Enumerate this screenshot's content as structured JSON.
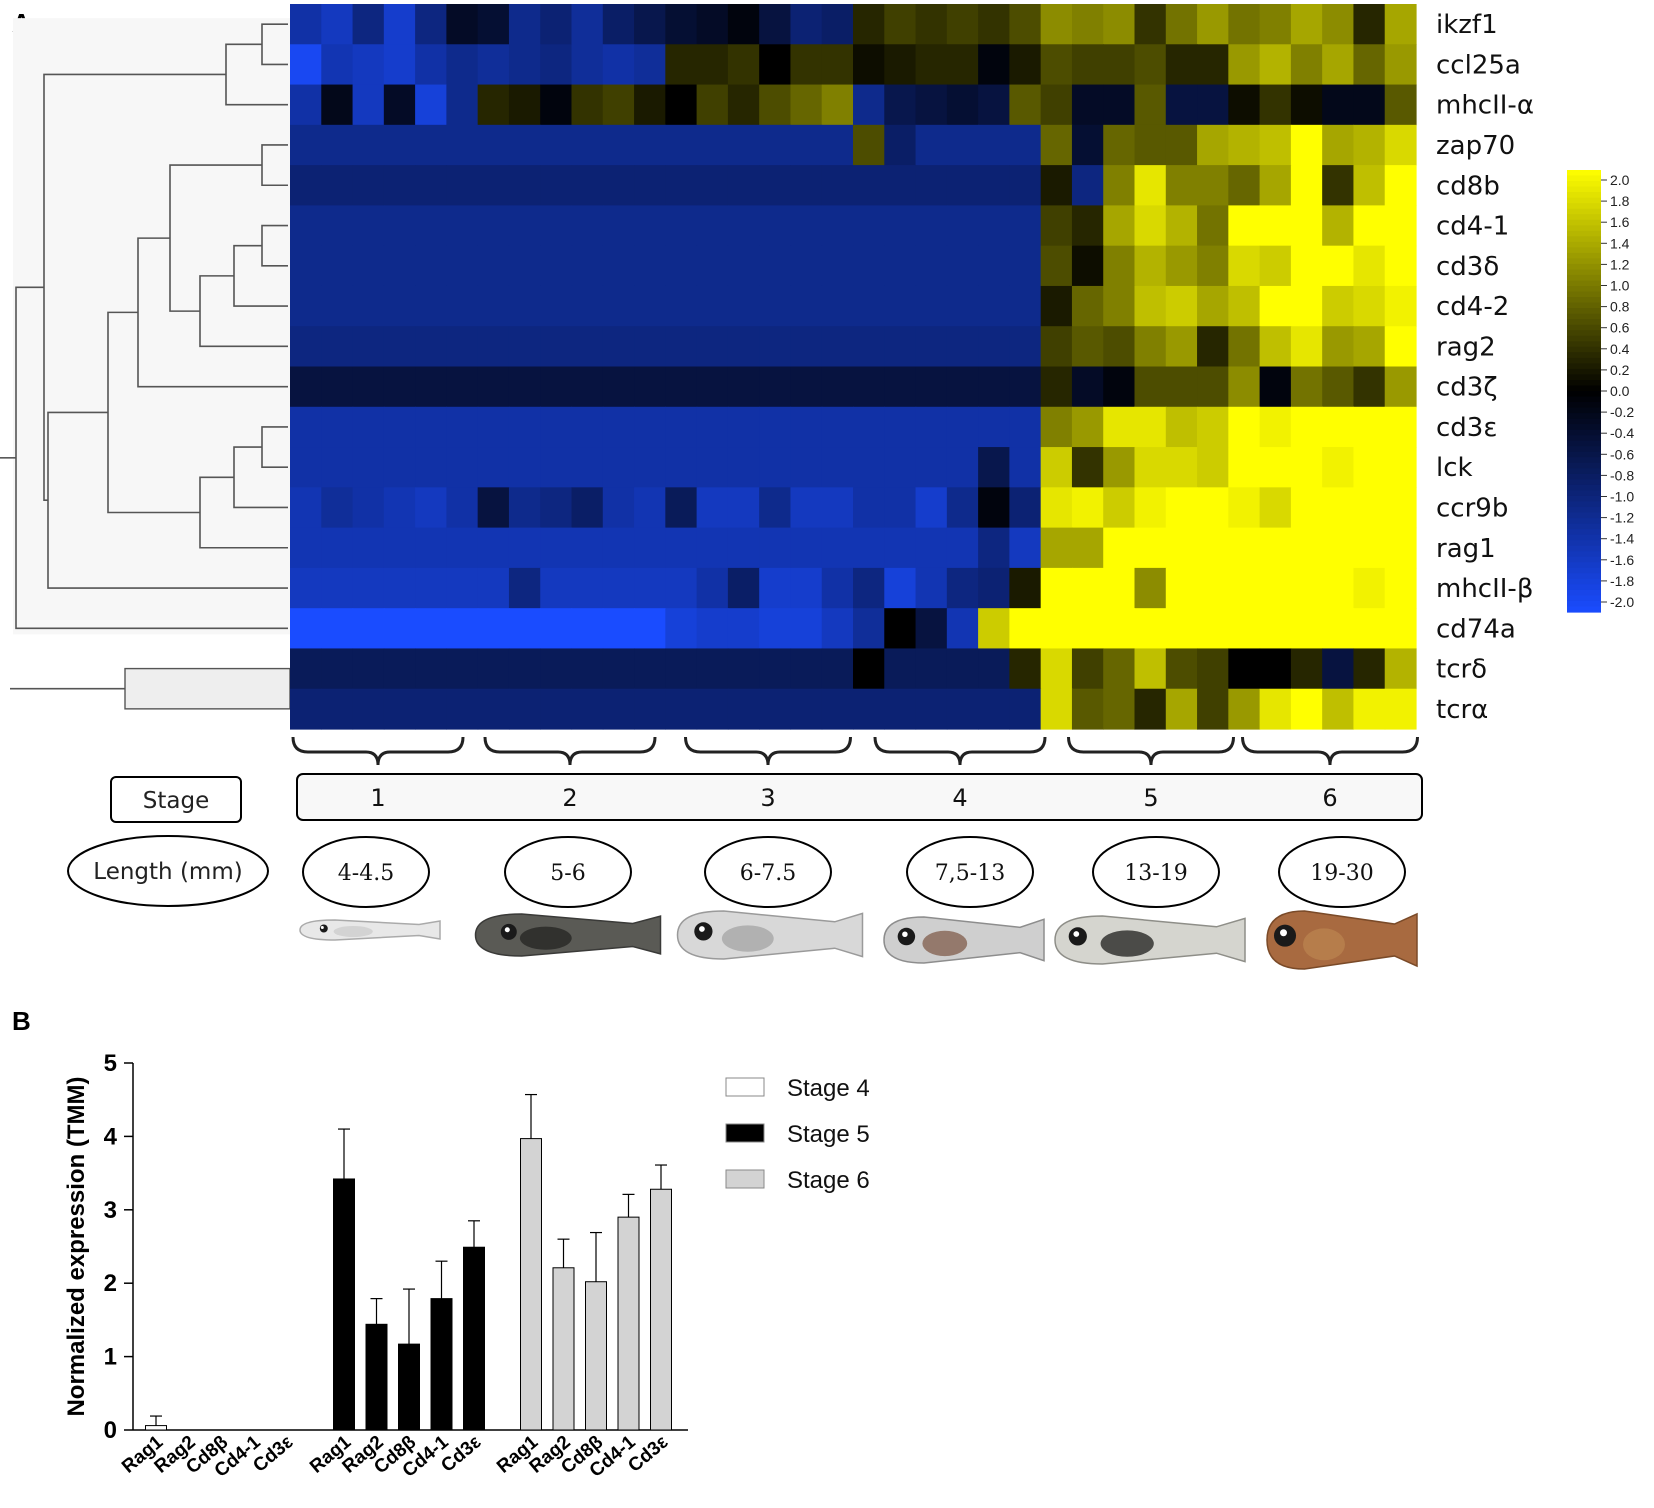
{
  "panelA": {
    "letter": "A",
    "stage_label": "Stage",
    "length_label": "Length (mm)",
    "genes": [
      "ikzf1",
      "ccl25a",
      "mhcII-α",
      "zap70",
      "cd8b",
      "cd4-1",
      "cd3δ",
      "cd4-2",
      "rag2",
      "cd3ζ",
      "cd3ε",
      "lck",
      "ccr9b",
      "rag1",
      "mhcII-β",
      "cd74a",
      "tcrδ",
      "tcrα"
    ],
    "stages": [
      "1",
      "2",
      "3",
      "4",
      "5",
      "6"
    ],
    "lengths": [
      "4-4.5",
      "5-6",
      "6-7.5",
      "7,5-13",
      "13-19",
      "19-30"
    ],
    "colorbar": {
      "ticks": [
        "2.0",
        "1.8",
        "1.6",
        "1.4",
        "1.2",
        "1.0",
        "0.8",
        "0.6",
        "0.4",
        "0.2",
        "0.0",
        "-0.2",
        "-0.4",
        "-0.6",
        "-0.8",
        "-1.0",
        "-1.2",
        "-1.4",
        "-1.6",
        "-1.8",
        "-2.0"
      ],
      "low_color": "#1a4cff",
      "mid_color": "#000000",
      "high_color": "#ffff00"
    }
  },
  "panelB": {
    "letter": "B"
  },
  "chart_data": [
    {
      "type": "heatmap",
      "rows": [
        "ikzf1",
        "ccl25a",
        "mhcII-α",
        "zap70",
        "cd8b",
        "cd4-1",
        "cd3δ",
        "cd4-2",
        "rag2",
        "cd3ζ",
        "cd3ε",
        "lck",
        "ccr9b",
        "rag1",
        "mhcII-β",
        "cd74a",
        "tcrδ",
        "tcrα"
      ],
      "column_groups": [
        "1",
        "2",
        "3",
        "4",
        "5",
        "6"
      ],
      "columns_per_group": 6,
      "value_range": [
        -2.0,
        2.0
      ],
      "values": [
        [
          -1.3,
          -1.5,
          -1.0,
          -1.6,
          -1.0,
          -0.3,
          -0.4,
          -1.1,
          -0.9,
          -1.2,
          -0.8,
          -0.6,
          -0.4,
          -0.3,
          -0.1,
          -0.5,
          -0.9,
          -0.8,
          0.3,
          0.5,
          0.4,
          0.5,
          0.4,
          0.6,
          1.1,
          1.0,
          1.1,
          0.4,
          0.9,
          1.2,
          0.9,
          1.0,
          1.3,
          1.1,
          0.3,
          1.3
        ],
        [
          -1.9,
          -1.4,
          -1.5,
          -1.6,
          -1.3,
          -1.1,
          -1.2,
          -1.1,
          -1.0,
          -1.2,
          -1.3,
          -1.2,
          0.3,
          0.3,
          0.4,
          0.0,
          0.4,
          0.4,
          0.1,
          0.2,
          0.3,
          0.3,
          -0.1,
          0.2,
          0.6,
          0.5,
          0.5,
          0.6,
          0.3,
          0.3,
          1.2,
          1.4,
          1.0,
          1.3,
          0.8,
          1.2
        ],
        [
          -1.3,
          -0.2,
          -1.5,
          -0.3,
          -1.7,
          -1.1,
          0.3,
          0.2,
          -0.1,
          0.4,
          0.5,
          0.2,
          0.0,
          0.5,
          0.3,
          0.6,
          0.8,
          1.0,
          -1.1,
          -0.6,
          -0.5,
          -0.4,
          -0.5,
          0.7,
          0.5,
          -0.3,
          -0.3,
          0.7,
          -0.5,
          -0.5,
          0.1,
          0.4,
          0.1,
          -0.2,
          -0.2,
          0.7
        ],
        [
          -1.1,
          -1.1,
          -1.1,
          -1.1,
          -1.1,
          -1.1,
          -1.1,
          -1.1,
          -1.1,
          -1.1,
          -1.1,
          -1.1,
          -1.1,
          -1.1,
          -1.1,
          -1.1,
          -1.1,
          -1.1,
          0.6,
          -0.8,
          -1.1,
          -1.1,
          -1.1,
          -1.1,
          0.8,
          -0.4,
          0.8,
          0.7,
          0.7,
          1.3,
          1.4,
          1.5,
          2.0,
          1.3,
          1.4,
          1.7
        ],
        [
          -0.9,
          -0.9,
          -0.9,
          -0.9,
          -0.9,
          -0.9,
          -0.9,
          -0.9,
          -0.9,
          -0.9,
          -0.9,
          -0.9,
          -0.9,
          -0.9,
          -0.9,
          -0.9,
          -0.9,
          -0.9,
          -0.9,
          -0.9,
          -0.9,
          -0.9,
          -0.9,
          -0.9,
          0.2,
          -1.0,
          1.0,
          1.8,
          1.0,
          1.0,
          0.8,
          1.3,
          2.0,
          0.4,
          1.5,
          2.0
        ],
        [
          -1.1,
          -1.1,
          -1.1,
          -1.1,
          -1.1,
          -1.1,
          -1.1,
          -1.1,
          -1.1,
          -1.1,
          -1.1,
          -1.1,
          -1.1,
          -1.1,
          -1.1,
          -1.1,
          -1.1,
          -1.1,
          -1.1,
          -1.1,
          -1.1,
          -1.1,
          -1.1,
          -1.1,
          0.5,
          0.3,
          1.3,
          1.7,
          1.4,
          0.9,
          2.0,
          2.0,
          2.0,
          1.4,
          2.0,
          2.0
        ],
        [
          -1.1,
          -1.1,
          -1.1,
          -1.1,
          -1.1,
          -1.1,
          -1.1,
          -1.1,
          -1.1,
          -1.1,
          -1.1,
          -1.1,
          -1.1,
          -1.1,
          -1.1,
          -1.1,
          -1.1,
          -1.1,
          -1.1,
          -1.1,
          -1.1,
          -1.1,
          -1.1,
          -1.1,
          0.6,
          0.1,
          1.0,
          1.4,
          1.2,
          1.0,
          1.7,
          1.6,
          2.0,
          2.0,
          1.8,
          2.0
        ],
        [
          -1.1,
          -1.1,
          -1.1,
          -1.1,
          -1.1,
          -1.1,
          -1.1,
          -1.1,
          -1.1,
          -1.1,
          -1.1,
          -1.1,
          -1.1,
          -1.1,
          -1.1,
          -1.1,
          -1.1,
          -1.1,
          -1.1,
          -1.1,
          -1.1,
          -1.1,
          -1.1,
          -1.1,
          0.2,
          0.8,
          1.0,
          1.5,
          1.6,
          1.3,
          1.5,
          2.0,
          2.0,
          1.6,
          1.7,
          1.9
        ],
        [
          -1.0,
          -1.0,
          -1.0,
          -1.0,
          -1.0,
          -1.0,
          -1.0,
          -1.0,
          -1.0,
          -1.0,
          -1.0,
          -1.0,
          -1.0,
          -1.0,
          -1.0,
          -1.0,
          -1.0,
          -1.0,
          -1.0,
          -1.0,
          -1.0,
          -1.0,
          -1.0,
          -1.0,
          0.5,
          0.7,
          0.6,
          1.0,
          1.2,
          0.3,
          0.9,
          1.5,
          1.8,
          1.2,
          1.3,
          2.0
        ],
        [
          -0.5,
          -0.5,
          -0.5,
          -0.5,
          -0.5,
          -0.5,
          -0.5,
          -0.5,
          -0.5,
          -0.5,
          -0.5,
          -0.5,
          -0.5,
          -0.5,
          -0.5,
          -0.5,
          -0.5,
          -0.5,
          -0.5,
          -0.5,
          -0.5,
          -0.5,
          -0.5,
          -0.5,
          0.3,
          -0.3,
          -0.1,
          0.6,
          0.6,
          0.6,
          1.1,
          -0.1,
          0.9,
          0.7,
          0.4,
          1.2
        ],
        [
          -1.3,
          -1.3,
          -1.3,
          -1.3,
          -1.3,
          -1.3,
          -1.3,
          -1.3,
          -1.3,
          -1.3,
          -1.3,
          -1.3,
          -1.3,
          -1.3,
          -1.3,
          -1.3,
          -1.3,
          -1.3,
          -1.3,
          -1.3,
          -1.3,
          -1.3,
          -1.3,
          -1.3,
          1.0,
          1.2,
          1.8,
          1.8,
          1.5,
          1.6,
          2.0,
          1.9,
          2.0,
          2.0,
          2.0,
          2.0
        ],
        [
          -1.3,
          -1.3,
          -1.3,
          -1.3,
          -1.3,
          -1.3,
          -1.3,
          -1.3,
          -1.3,
          -1.3,
          -1.3,
          -1.3,
          -1.3,
          -1.3,
          -1.3,
          -1.3,
          -1.3,
          -1.3,
          -1.3,
          -1.3,
          -1.3,
          -1.3,
          -0.6,
          -1.3,
          1.6,
          0.4,
          1.2,
          1.7,
          1.7,
          1.6,
          2.0,
          2.0,
          2.0,
          1.9,
          2.0,
          2.0
        ],
        [
          -1.4,
          -1.2,
          -1.3,
          -1.4,
          -1.5,
          -1.3,
          -0.5,
          -1.1,
          -1.0,
          -0.8,
          -1.3,
          -1.4,
          -0.7,
          -1.5,
          -1.5,
          -1.1,
          -1.5,
          -1.5,
          -1.3,
          -1.3,
          -1.6,
          -1.1,
          -0.1,
          -0.9,
          1.8,
          1.9,
          1.6,
          1.9,
          2.0,
          2.0,
          1.9,
          1.7,
          2.0,
          2.0,
          2.0,
          2.0
        ],
        [
          -1.4,
          -1.4,
          -1.4,
          -1.4,
          -1.4,
          -1.4,
          -1.4,
          -1.4,
          -1.4,
          -1.4,
          -1.4,
          -1.4,
          -1.4,
          -1.4,
          -1.4,
          -1.4,
          -1.4,
          -1.4,
          -1.4,
          -1.4,
          -1.4,
          -1.4,
          -1.0,
          -1.5,
          1.3,
          1.3,
          2.0,
          2.0,
          2.0,
          2.0,
          2.0,
          2.0,
          2.0,
          2.0,
          2.0,
          2.0
        ],
        [
          -1.5,
          -1.5,
          -1.5,
          -1.5,
          -1.5,
          -1.5,
          -1.5,
          -1.0,
          -1.5,
          -1.5,
          -1.5,
          -1.5,
          -1.5,
          -1.3,
          -0.8,
          -1.6,
          -1.6,
          -1.3,
          -1.0,
          -1.7,
          -1.4,
          -1.0,
          -0.9,
          0.2,
          2.0,
          2.0,
          2.0,
          1.1,
          2.0,
          2.0,
          2.0,
          2.0,
          2.0,
          2.0,
          1.9,
          2.0
        ],
        [
          -2.0,
          -2.0,
          -2.0,
          -2.0,
          -2.0,
          -2.0,
          -2.0,
          -2.0,
          -2.0,
          -2.0,
          -2.0,
          -2.0,
          -1.7,
          -1.6,
          -1.6,
          -1.7,
          -1.7,
          -1.5,
          -1.2,
          0.0,
          -0.5,
          -1.4,
          1.6,
          2.0,
          2.0,
          2.0,
          2.0,
          2.0,
          2.0,
          2.0,
          2.0,
          2.0,
          2.0,
          2.0,
          2.0,
          2.0
        ],
        [
          -0.7,
          -0.7,
          -0.7,
          -0.7,
          -0.7,
          -0.7,
          -0.7,
          -0.7,
          -0.7,
          -0.7,
          -0.7,
          -0.7,
          -0.7,
          -0.7,
          -0.7,
          -0.7,
          -0.7,
          -0.7,
          0.0,
          -0.7,
          -0.7,
          -0.7,
          -0.7,
          0.3,
          1.7,
          0.5,
          0.8,
          1.5,
          0.6,
          0.5,
          0.0,
          0.0,
          0.3,
          -0.5,
          0.3,
          1.4
        ],
        [
          -0.9,
          -0.9,
          -0.9,
          -0.9,
          -0.9,
          -0.9,
          -0.9,
          -0.9,
          -0.9,
          -0.9,
          -0.9,
          -0.9,
          -0.9,
          -0.9,
          -0.9,
          -0.9,
          -0.9,
          -0.9,
          -0.9,
          -0.9,
          -0.9,
          -0.9,
          -0.9,
          -0.9,
          1.7,
          0.7,
          0.8,
          0.3,
          1.3,
          0.5,
          1.2,
          1.8,
          2.0,
          1.5,
          1.9,
          1.9
        ]
      ]
    },
    {
      "type": "bar",
      "ylabel": "Normalized expression (TMM)",
      "ylim": [
        0,
        5
      ],
      "yticks": [
        "0",
        "1",
        "2",
        "3",
        "4",
        "5"
      ],
      "categories": [
        "Rag1",
        "Rag2",
        "Cd8β",
        "Cd4-1",
        "Cd3ε"
      ],
      "legend_position": "top-right",
      "error_bars": true,
      "series": [
        {
          "name": "Stage 4",
          "color": "#ffffff",
          "values": [
            0.06,
            0,
            0,
            0,
            0
          ],
          "errors": [
            0.13,
            0,
            0,
            0,
            0
          ]
        },
        {
          "name": "Stage 5",
          "color": "#000000",
          "values": [
            3.42,
            1.44,
            1.17,
            1.79,
            2.49
          ],
          "errors": [
            0.68,
            0.35,
            0.75,
            0.51,
            0.36
          ]
        },
        {
          "name": "Stage 6",
          "color": "#d3d3d3",
          "values": [
            3.97,
            2.21,
            2.02,
            2.9,
            3.28
          ],
          "errors": [
            0.6,
            0.39,
            0.67,
            0.31,
            0.33
          ]
        }
      ]
    }
  ]
}
